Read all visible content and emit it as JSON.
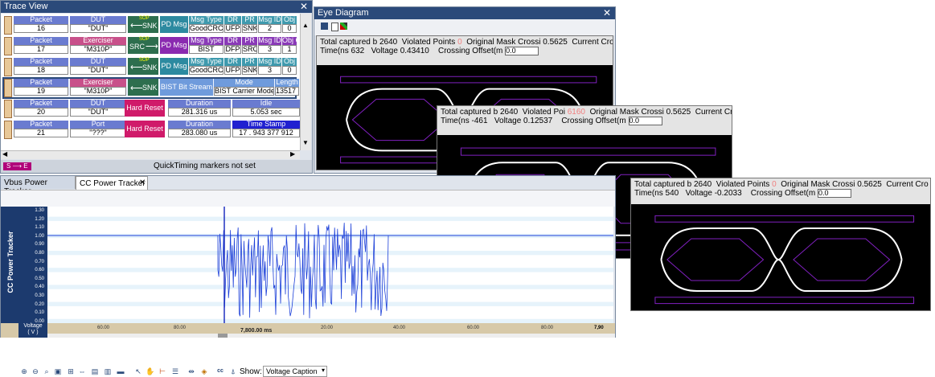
{
  "trace_view": {
    "title": "Trace View",
    "close": "✕",
    "rows": [
      {
        "packet_label": "Packet",
        "packet_num": "16",
        "src_label": "DUT",
        "src_val": "\"DUT\"",
        "dir": "SNK",
        "sop": "SOP",
        "msg_kind": "PD Msg",
        "h1": "Msg Type",
        "h2": "DR",
        "h3": "PR",
        "h4": "Msg ID",
        "h5": "Obj",
        "v1": "GoodCRC",
        "v2": "UFP",
        "v3": "SNK",
        "v4": "2",
        "v5": "0"
      },
      {
        "packet_label": "Packet",
        "packet_num": "17",
        "src_label": "Exerciser",
        "src_val": "\"M310P\"",
        "dir": "SRC",
        "sop": "SOP",
        "msg_kind": "PD Msg",
        "h1": "Msg Type",
        "h2": "DR",
        "h3": "PR",
        "h4": "Msg ID",
        "h5": "Obj C",
        "v1": "BIST",
        "v2": "DFP",
        "v3": "SRC",
        "v4": "3",
        "v5": "1"
      },
      {
        "packet_label": "Packet",
        "packet_num": "18",
        "src_label": "DUT",
        "src_val": "\"DUT\"",
        "dir": "SNK",
        "sop": "SOP",
        "msg_kind": "PD Msg",
        "h1": "Msg Type",
        "h2": "DR",
        "h3": "PR",
        "h4": "Msg ID",
        "h5": "Obj",
        "v1": "GoodCRC",
        "v2": "UFP",
        "v3": "SNK",
        "v4": "3",
        "v5": "0"
      }
    ],
    "bist_row": {
      "packet_label": "Packet",
      "packet_num": "19",
      "src_label": "Exerciser",
      "src_val": "\"M310P\"",
      "dir": "SNK",
      "kind": "BIST Bit Stream",
      "mode_h": "Mode",
      "mode_v": "BIST Carrier Mode",
      "len_h": "Length",
      "len_v": "13517 b"
    },
    "reset_rows": [
      {
        "packet_label": "Packet",
        "packet_num": "20",
        "src_label": "DUT",
        "src_val": "\"DUT\"",
        "kind": "Hard Reset",
        "h1": "Duration",
        "v1": "281.316 us",
        "h2": "Idle",
        "v2": "5.053 sec"
      },
      {
        "packet_label": "Packet",
        "packet_num": "21",
        "src_label": "Port",
        "src_val": "\"???\"",
        "kind": "Hard Reset",
        "h1": "Duration",
        "v1": "283.080 us",
        "h2": "Time Stamp",
        "v2": "17 . 943 377 912"
      }
    ],
    "footer_marker": "S ⟶ E",
    "footer_text": "QuickTiming markers not set"
  },
  "eye_diagram": {
    "title": "Eye Diagram",
    "close": "✕",
    "panels": [
      {
        "l1a": "Total captured b",
        "l1b": "2640",
        "l1c": "Violated Points",
        "l1d": "0",
        "l1e": "Original Mask Crossi",
        "l1f": "0.5625",
        "l1g": "Current Cros",
        "l2a": "Time(ns",
        "l2b": "632",
        "l2c": "Voltage",
        "l2d": "0.43410",
        "l2e": "Crossing Offset(m",
        "l2f": "0.0"
      },
      {
        "l1a": "Total captured b",
        "l1b": "2640",
        "l1c": "Violated Poi",
        "l1d": "6160",
        "l1e": "Original Mask Crossi",
        "l1f": "0.5625",
        "l1g": "Current Cro",
        "l2a": "Time(ns",
        "l2b": "-461",
        "l2c": "Voltage",
        "l2d": "0.12537",
        "l2e": "Crossing Offset(m",
        "l2f": "0.0"
      },
      {
        "l1a": "Total captured b",
        "l1b": "2640",
        "l1c": "Violated Points",
        "l1d": "0",
        "l1e": "Original Mask Crossi",
        "l1f": "0.5625",
        "l1g": "Current Cro",
        "l2a": "Time(ns",
        "l2b": "540",
        "l2c": "Voltage",
        "l2d": "-0.2033",
        "l2e": "Crossing Offset(m",
        "l2f": "0.0"
      }
    ]
  },
  "power_tracker": {
    "tabs": [
      "Vbus Power Tracker",
      "CC Power Tracker"
    ],
    "tab_close": "✕",
    "show_label": "Show:",
    "show_value": "Voltage Caption",
    "ylabel": "CC Power Tracker",
    "yticks": [
      "1.30",
      "1.20",
      "1.10",
      "1.00",
      "0.90",
      "0.80",
      "0.70",
      "0.60",
      "0.50",
      "0.40",
      "0.30",
      "0.20",
      "0.10",
      "0.00"
    ],
    "xticks": [
      "60.00",
      "80.00",
      "20.00",
      "40.00",
      "60.00",
      "80.00",
      "7,90"
    ],
    "center_label": "7,800.00 ms",
    "axis_name": "Voltage",
    "axis_unit": "( V )",
    "colors": {
      "trace": "#1c3fd8",
      "marker": "#2030c0",
      "plot_bg": "#ffffff",
      "axis_bg": "#1c3a6e"
    }
  }
}
